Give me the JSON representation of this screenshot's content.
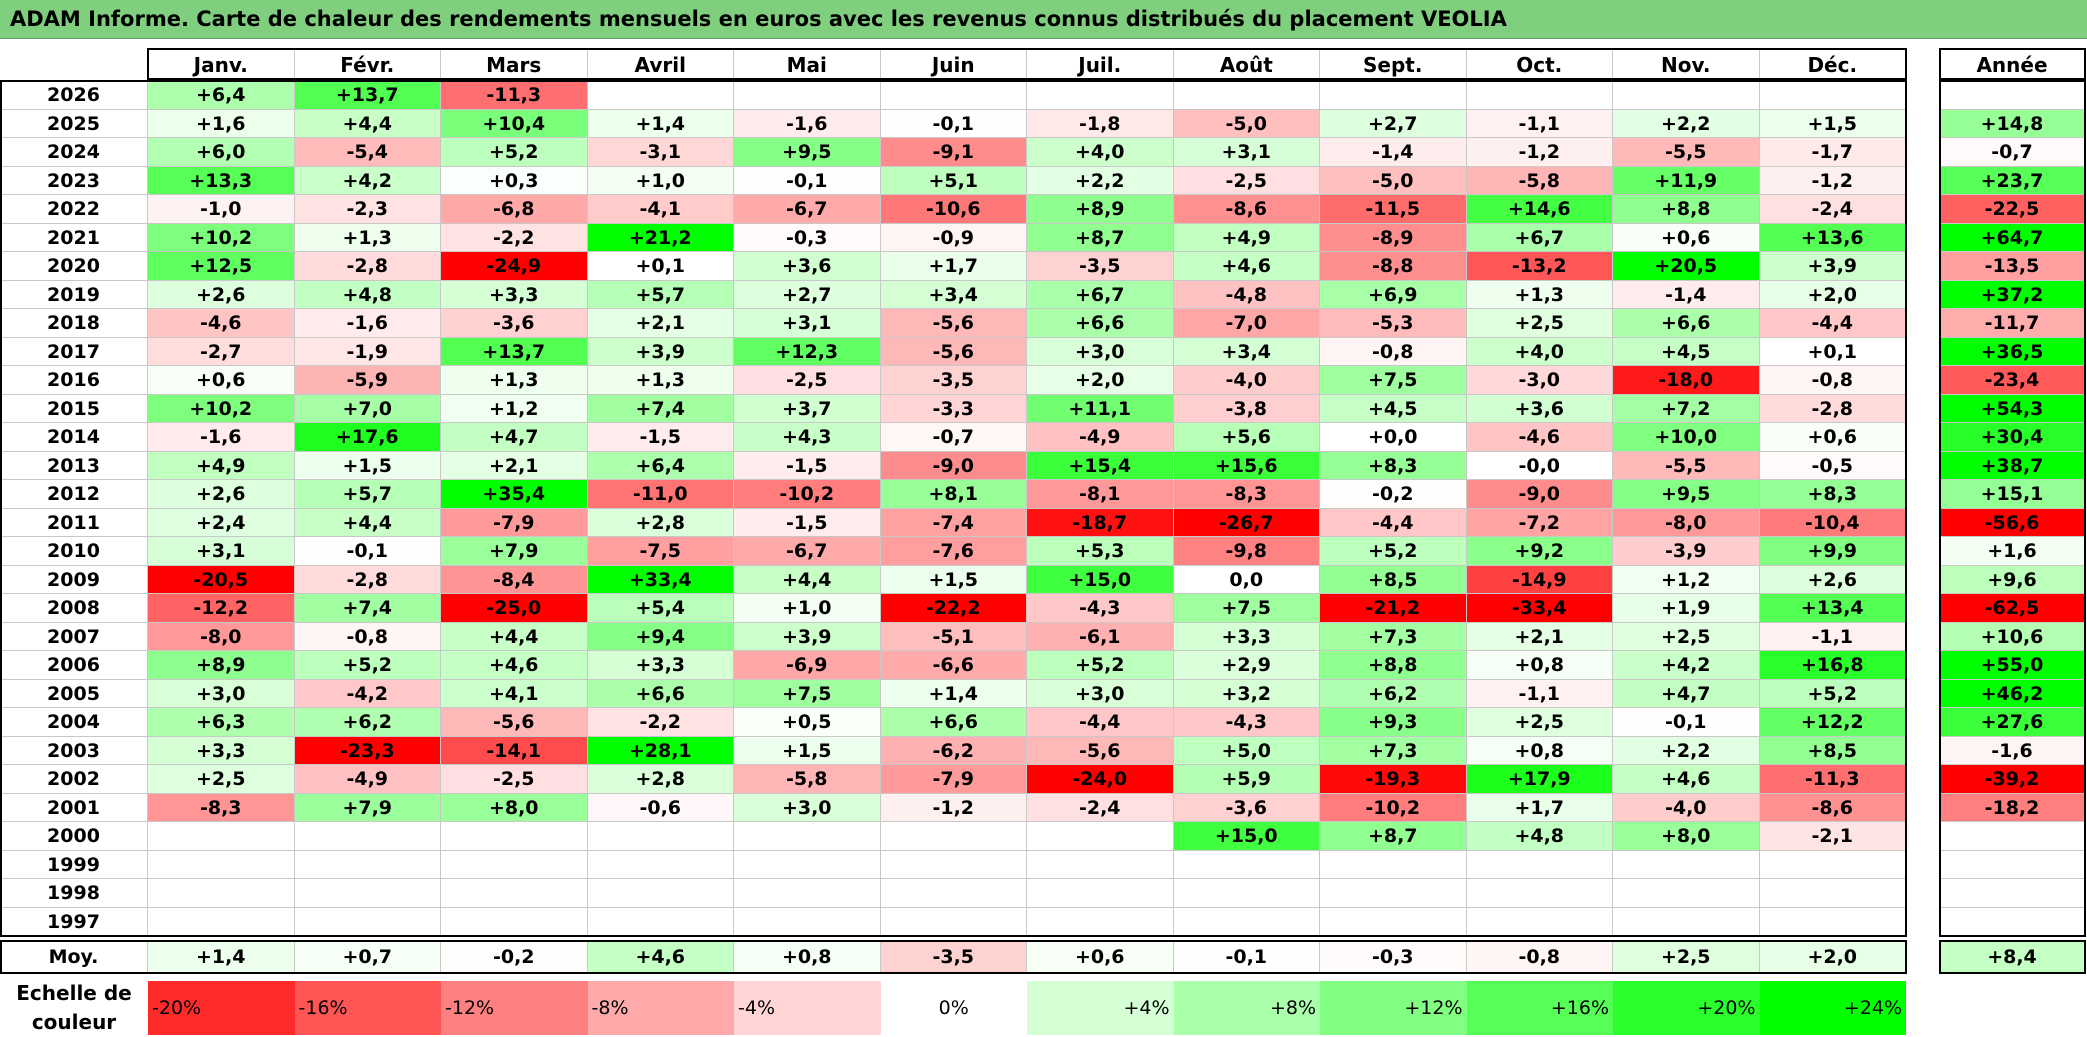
{
  "title": "ADAM Informe. Carte de chaleur des rendements mensuels en euros avec les revenus connus distribués du placement VEOLIA",
  "chart_data": {
    "type": "heatmap",
    "title": "ADAM Informe. Carte de chaleur des rendements mensuels en euros avec les revenus connus distribués du placement VEOLIA",
    "months": [
      "Janv.",
      "Févr.",
      "Mars",
      "Avril",
      "Mai",
      "Juin",
      "Juil.",
      "Août",
      "Sept.",
      "Oct.",
      "Nov.",
      "Déc."
    ],
    "year_header": "Année",
    "rows": [
      {
        "year": "2026",
        "values": [
          "+6,4",
          "+13,7",
          "-11,3",
          "",
          "",
          "",
          "",
          "",
          "",
          "",
          "",
          ""
        ],
        "annual": ""
      },
      {
        "year": "2025",
        "values": [
          "+1,6",
          "+4,4",
          "+10,4",
          "+1,4",
          "-1,6",
          "-0,1",
          "-1,8",
          "-5,0",
          "+2,7",
          "-1,1",
          "+2,2",
          "+1,5"
        ],
        "annual": "+14,8"
      },
      {
        "year": "2024",
        "values": [
          "+6,0",
          "-5,4",
          "+5,2",
          "-3,1",
          "+9,5",
          "-9,1",
          "+4,0",
          "+3,1",
          "-1,4",
          "-1,2",
          "-5,5",
          "-1,7"
        ],
        "annual": "-0,7"
      },
      {
        "year": "2023",
        "values": [
          "+13,3",
          "+4,2",
          "+0,3",
          "+1,0",
          "-0,1",
          "+5,1",
          "+2,2",
          "-2,5",
          "-5,0",
          "-5,8",
          "+11,9",
          "-1,2"
        ],
        "annual": "+23,7"
      },
      {
        "year": "2022",
        "values": [
          "-1,0",
          "-2,3",
          "-6,8",
          "-4,1",
          "-6,7",
          "-10,6",
          "+8,9",
          "-8,6",
          "-11,5",
          "+14,6",
          "+8,8",
          "-2,4"
        ],
        "annual": "-22,5"
      },
      {
        "year": "2021",
        "values": [
          "+10,2",
          "+1,3",
          "-2,2",
          "+21,2",
          "-0,3",
          "-0,9",
          "+8,7",
          "+4,9",
          "-8,9",
          "+6,7",
          "+0,6",
          "+13,6"
        ],
        "annual": "+64,7"
      },
      {
        "year": "2020",
        "values": [
          "+12,5",
          "-2,8",
          "-24,9",
          "+0,1",
          "+3,6",
          "+1,7",
          "-3,5",
          "+4,6",
          "-8,8",
          "-13,2",
          "+20,5",
          "+3,9"
        ],
        "annual": "-13,5"
      },
      {
        "year": "2019",
        "values": [
          "+2,6",
          "+4,8",
          "+3,3",
          "+5,7",
          "+2,7",
          "+3,4",
          "+6,7",
          "-4,8",
          "+6,9",
          "+1,3",
          "-1,4",
          "+2,0"
        ],
        "annual": "+37,2"
      },
      {
        "year": "2018",
        "values": [
          "-4,6",
          "-1,6",
          "-3,6",
          "+2,1",
          "+3,1",
          "-5,6",
          "+6,6",
          "-7,0",
          "-5,3",
          "+2,5",
          "+6,6",
          "-4,4"
        ],
        "annual": "-11,7"
      },
      {
        "year": "2017",
        "values": [
          "-2,7",
          "-1,9",
          "+13,7",
          "+3,9",
          "+12,3",
          "-5,6",
          "+3,0",
          "+3,4",
          "-0,8",
          "+4,0",
          "+4,5",
          "+0,1"
        ],
        "annual": "+36,5"
      },
      {
        "year": "2016",
        "values": [
          "+0,6",
          "-5,9",
          "+1,3",
          "+1,3",
          "-2,5",
          "-3,5",
          "+2,0",
          "-4,0",
          "+7,5",
          "-3,0",
          "-18,0",
          "-0,8"
        ],
        "annual": "-23,4"
      },
      {
        "year": "2015",
        "values": [
          "+10,2",
          "+7,0",
          "+1,2",
          "+7,4",
          "+3,7",
          "-3,3",
          "+11,1",
          "-3,8",
          "+4,5",
          "+3,6",
          "+7,2",
          "-2,8"
        ],
        "annual": "+54,3"
      },
      {
        "year": "2014",
        "values": [
          "-1,6",
          "+17,6",
          "+4,7",
          "-1,5",
          "+4,3",
          "-0,7",
          "-4,9",
          "+5,6",
          "+0,0",
          "-4,6",
          "+10,0",
          "+0,6"
        ],
        "annual": "+30,4"
      },
      {
        "year": "2013",
        "values": [
          "+4,9",
          "+1,5",
          "+2,1",
          "+6,4",
          "-1,5",
          "-9,0",
          "+15,4",
          "+15,6",
          "+8,3",
          "-0,0",
          "-5,5",
          "-0,5"
        ],
        "annual": "+38,7"
      },
      {
        "year": "2012",
        "values": [
          "+2,6",
          "+5,7",
          "+35,4",
          "-11,0",
          "-10,2",
          "+8,1",
          "-8,1",
          "-8,3",
          "-0,2",
          "-9,0",
          "+9,5",
          "+8,3"
        ],
        "annual": "+15,1"
      },
      {
        "year": "2011",
        "values": [
          "+2,4",
          "+4,4",
          "-7,9",
          "+2,8",
          "-1,5",
          "-7,4",
          "-18,7",
          "-26,7",
          "-4,4",
          "-7,2",
          "-8,0",
          "-10,4"
        ],
        "annual": "-56,6"
      },
      {
        "year": "2010",
        "values": [
          "+3,1",
          "-0,1",
          "+7,9",
          "-7,5",
          "-6,7",
          "-7,6",
          "+5,3",
          "-9,8",
          "+5,2",
          "+9,2",
          "-3,9",
          "+9,9"
        ],
        "annual": "+1,6"
      },
      {
        "year": "2009",
        "values": [
          "-20,5",
          "-2,8",
          "-8,4",
          "+33,4",
          "+4,4",
          "+1,5",
          "+15,0",
          "0,0",
          "+8,5",
          "-14,9",
          "+1,2",
          "+2,6"
        ],
        "annual": "+9,6"
      },
      {
        "year": "2008",
        "values": [
          "-12,2",
          "+7,4",
          "-25,0",
          "+5,4",
          "+1,0",
          "-22,2",
          "-4,3",
          "+7,5",
          "-21,2",
          "-33,4",
          "+1,9",
          "+13,4"
        ],
        "annual": "-62,5"
      },
      {
        "year": "2007",
        "values": [
          "-8,0",
          "-0,8",
          "+4,4",
          "+9,4",
          "+3,9",
          "-5,1",
          "-6,1",
          "+3,3",
          "+7,3",
          "+2,1",
          "+2,5",
          "-1,1"
        ],
        "annual": "+10,6"
      },
      {
        "year": "2006",
        "values": [
          "+8,9",
          "+5,2",
          "+4,6",
          "+3,3",
          "-6,9",
          "-6,6",
          "+5,2",
          "+2,9",
          "+8,8",
          "+0,8",
          "+4,2",
          "+16,8"
        ],
        "annual": "+55,0"
      },
      {
        "year": "2005",
        "values": [
          "+3,0",
          "-4,2",
          "+4,1",
          "+6,6",
          "+7,5",
          "+1,4",
          "+3,0",
          "+3,2",
          "+6,2",
          "-1,1",
          "+4,7",
          "+5,2"
        ],
        "annual": "+46,2"
      },
      {
        "year": "2004",
        "values": [
          "+6,3",
          "+6,2",
          "-5,6",
          "-2,2",
          "+0,5",
          "+6,6",
          "-4,4",
          "-4,3",
          "+9,3",
          "+2,5",
          "-0,1",
          "+12,2"
        ],
        "annual": "+27,6"
      },
      {
        "year": "2003",
        "values": [
          "+3,3",
          "-23,3",
          "-14,1",
          "+28,1",
          "+1,5",
          "-6,2",
          "-5,6",
          "+5,0",
          "+7,3",
          "+0,8",
          "+2,2",
          "+8,5"
        ],
        "annual": "-1,6"
      },
      {
        "year": "2002",
        "values": [
          "+2,5",
          "-4,9",
          "-2,5",
          "+2,8",
          "-5,8",
          "-7,9",
          "-24,0",
          "+5,9",
          "-19,3",
          "+17,9",
          "+4,6",
          "-11,3"
        ],
        "annual": "-39,2"
      },
      {
        "year": "2001",
        "values": [
          "-8,3",
          "+7,9",
          "+8,0",
          "-0,6",
          "+3,0",
          "-1,2",
          "-2,4",
          "-3,6",
          "-10,2",
          "+1,7",
          "-4,0",
          "-8,6"
        ],
        "annual": "-18,2"
      },
      {
        "year": "2000",
        "values": [
          "",
          "",
          "",
          "",
          "",
          "",
          "",
          "+15,0",
          "+8,7",
          "+4,8",
          "+8,0",
          "-2,1"
        ],
        "annual": ""
      },
      {
        "year": "1999",
        "values": [
          "",
          "",
          "",
          "",
          "",
          "",
          "",
          "",
          "",
          "",
          "",
          ""
        ],
        "annual": ""
      },
      {
        "year": "1998",
        "values": [
          "",
          "",
          "",
          "",
          "",
          "",
          "",
          "",
          "",
          "",
          "",
          ""
        ],
        "annual": ""
      },
      {
        "year": "1997",
        "values": [
          "",
          "",
          "",
          "",
          "",
          "",
          "",
          "",
          "",
          "",
          "",
          ""
        ],
        "annual": ""
      }
    ],
    "average": {
      "label": "Moy.",
      "values": [
        "+1,4",
        "+0,7",
        "-0,2",
        "+4,6",
        "+0,8",
        "-3,5",
        "+0,6",
        "-0,1",
        "-0,3",
        "-0,8",
        "+2,5",
        "+2,0"
      ],
      "annual": "+8,4"
    },
    "scale": {
      "label_line1": "Echelle de",
      "label_line2": "couleur",
      "steps": [
        "-20%",
        "-16%",
        "-12%",
        "-8%",
        "-4%",
        "0%",
        "+4%",
        "+8%",
        "+12%",
        "+16%",
        "+20%",
        "+24%"
      ]
    }
  }
}
